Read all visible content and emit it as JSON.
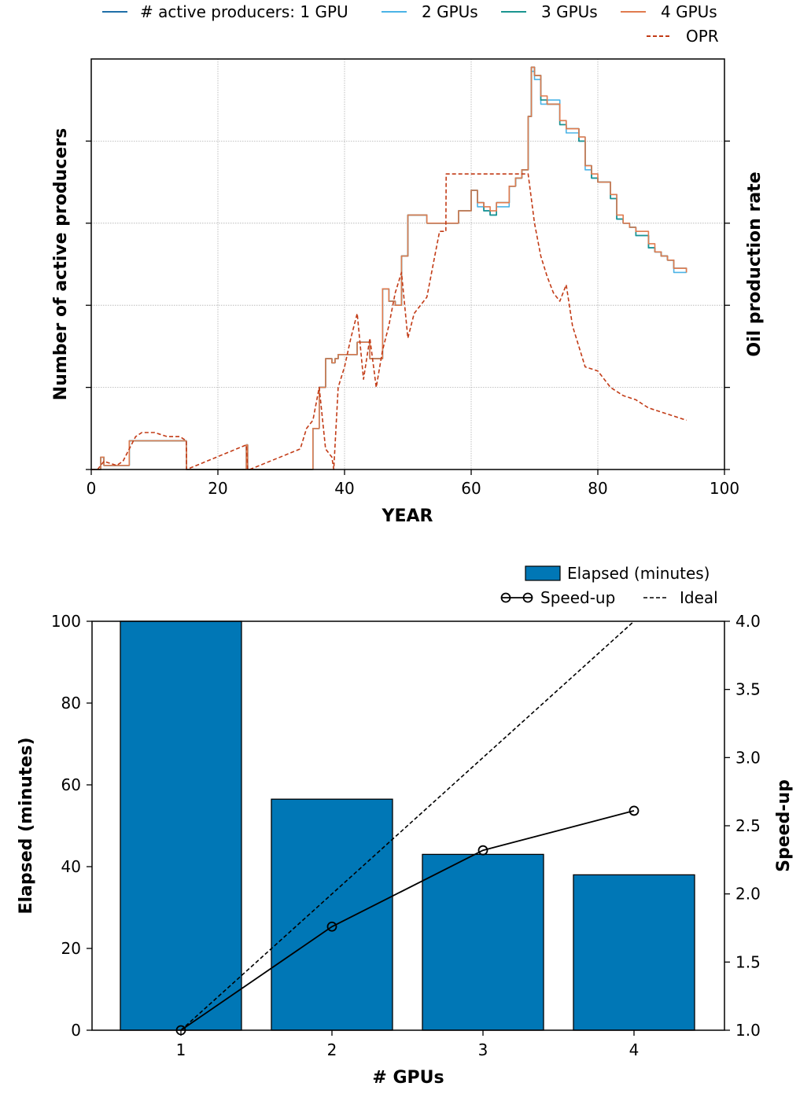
{
  "chart_data": [
    {
      "type": "line",
      "xlabel": "YEAR",
      "ylabel": "Number of active producers",
      "y2label": "Oil production rate",
      "xlim": [
        0,
        100
      ],
      "xticks": [
        "0",
        "20",
        "40",
        "60",
        "80",
        "100"
      ],
      "y_tick_labels_shown": false,
      "ylim": [
        0,
        100
      ],
      "grid": true,
      "legend": {
        "placement": "top-right",
        "entries": [
          "# active producers: 1 GPU",
          "2 GPUs",
          "3 GPUs",
          "4 GPUs",
          "OPR"
        ]
      },
      "series": [
        {
          "name": "# active producers: 1 GPU",
          "color": "#1f6fa8",
          "style": "solid",
          "x": [
            0,
            1,
            1.5,
            2,
            5,
            6,
            15,
            15.05,
            24.5,
            24.7,
            25,
            35,
            36,
            37,
            38,
            38.5,
            39,
            40,
            42,
            44,
            46,
            47,
            48,
            49,
            50,
            52,
            53,
            55,
            55.5,
            57,
            58,
            60,
            61,
            62,
            63,
            64,
            66,
            67,
            68,
            69,
            69.5,
            70,
            71,
            72,
            74,
            75,
            77,
            78,
            79,
            80,
            82,
            83,
            84,
            85,
            86,
            88,
            89,
            90,
            91,
            92,
            94
          ],
          "y": [
            0,
            0,
            3,
            1,
            1,
            7,
            5,
            0,
            6,
            0,
            0,
            10,
            20,
            27,
            26,
            27,
            28,
            28,
            31,
            27,
            44,
            41,
            40,
            52,
            62,
            62,
            60,
            60,
            60,
            60,
            63,
            68,
            65,
            63,
            62,
            65,
            69,
            71,
            73,
            86,
            98,
            96,
            90,
            89,
            84,
            83,
            80,
            74,
            71,
            70,
            66,
            61,
            60,
            59,
            57,
            54,
            53,
            52,
            51,
            49,
            48
          ]
        },
        {
          "name": "2 GPUs",
          "color": "#4bb3e6",
          "style": "solid",
          "x": [
            0,
            1,
            1.5,
            2,
            5,
            6,
            15,
            15.05,
            24.5,
            24.7,
            25,
            35,
            36,
            37,
            38,
            38.5,
            39,
            40,
            42,
            44,
            46,
            47,
            48,
            49,
            50,
            52,
            53,
            55,
            55.5,
            57,
            58,
            60,
            61,
            62,
            63,
            64,
            66,
            67,
            68,
            69,
            69.5,
            70,
            71,
            72,
            74,
            75,
            77,
            78,
            79,
            80,
            82,
            83,
            84,
            85,
            86,
            88,
            89,
            90,
            91,
            92,
            94
          ],
          "y": [
            0,
            0,
            3,
            1,
            1,
            7,
            5,
            0,
            6,
            0,
            0,
            10,
            20,
            27,
            26,
            27,
            28,
            28,
            31,
            27,
            44,
            41,
            40,
            52,
            62,
            62,
            60,
            60,
            60,
            60,
            63,
            68,
            64,
            63,
            62,
            64,
            69,
            71,
            73,
            86,
            97,
            95,
            89,
            90,
            85,
            82,
            81,
            73,
            71,
            70,
            67,
            61,
            60,
            59,
            57,
            54,
            53,
            52,
            51,
            48,
            48
          ]
        },
        {
          "name": "3 GPUs",
          "color": "#1a9590",
          "style": "solid",
          "x": [
            0,
            1,
            1.5,
            2,
            5,
            6,
            15,
            15.05,
            24.5,
            24.7,
            25,
            35,
            36,
            37,
            38,
            38.5,
            39,
            40,
            42,
            44,
            46,
            47,
            48,
            49,
            50,
            52,
            53,
            55,
            55.5,
            57,
            58,
            60,
            61,
            62,
            63,
            64,
            66,
            67,
            68,
            69,
            69.5,
            70,
            71,
            72,
            74,
            75,
            77,
            78,
            79,
            80,
            82,
            83,
            84,
            85,
            86,
            88,
            89,
            90,
            91,
            92,
            94
          ],
          "y": [
            0,
            0,
            3,
            1,
            1,
            7,
            5,
            0,
            6,
            0,
            0,
            10,
            20,
            27,
            26,
            27,
            28,
            28,
            31,
            27,
            44,
            41,
            40,
            52,
            62,
            62,
            60,
            60,
            60,
            60,
            63,
            68,
            65,
            63,
            62,
            65,
            69,
            71,
            73,
            86,
            98,
            96,
            90,
            89,
            84,
            83,
            80,
            74,
            71,
            70,
            66,
            61,
            60,
            59,
            57,
            54,
            53,
            52,
            51,
            49,
            48
          ]
        },
        {
          "name": "4 GPUs",
          "color": "#e07b4f",
          "style": "solid",
          "x": [
            0,
            1,
            1.5,
            2,
            5,
            6,
            15,
            15.05,
            24.5,
            24.7,
            25,
            35,
            36,
            37,
            38,
            38.5,
            39,
            40,
            42,
            44,
            46,
            47,
            48,
            49,
            50,
            52,
            53,
            55,
            55.5,
            57,
            58,
            60,
            61,
            62,
            63,
            64,
            66,
            67,
            68,
            69,
            69.5,
            70,
            71,
            72,
            74,
            75,
            77,
            78,
            79,
            80,
            82,
            83,
            84,
            85,
            86,
            88,
            89,
            90,
            91,
            92,
            94
          ],
          "y": [
            0,
            0,
            3,
            1,
            1,
            7,
            5,
            0,
            6,
            0,
            0,
            10,
            20,
            27,
            26,
            27,
            28,
            28,
            31,
            27,
            44,
            41,
            40,
            52,
            62,
            62,
            60,
            60,
            60,
            60,
            63,
            68,
            65,
            64,
            63,
            65,
            69,
            71,
            73,
            86,
            98,
            96,
            91,
            89,
            85,
            83,
            81,
            74,
            72,
            70,
            67,
            62,
            60,
            59,
            58,
            55,
            53,
            52,
            51,
            49,
            48
          ]
        },
        {
          "name": "OPR",
          "color": "#c23b16",
          "style": "dashed",
          "x": [
            0,
            1,
            2,
            4,
            5,
            6,
            7,
            8,
            10,
            12,
            14,
            15,
            15.05,
            24.5,
            24.7,
            25,
            33,
            34,
            35,
            36,
            37,
            38,
            38.3,
            39,
            40,
            41,
            42,
            43,
            44,
            45,
            46,
            47,
            48,
            49,
            50,
            51,
            52,
            53,
            54,
            55,
            56,
            56.05,
            69,
            70,
            71,
            72,
            73,
            74,
            75,
            76,
            78,
            80,
            82,
            84,
            86,
            88,
            90,
            92,
            94
          ],
          "y": [
            0,
            0,
            2,
            1,
            2,
            5,
            8,
            9,
            9,
            8,
            8,
            7,
            0,
            6,
            0,
            0,
            5,
            10,
            12,
            20,
            5,
            3,
            0,
            20,
            25,
            32,
            38,
            22,
            32,
            20,
            29,
            35,
            43,
            48,
            32,
            38,
            40,
            42,
            50,
            58,
            58,
            72,
            72,
            60,
            52,
            47,
            43,
            41,
            45,
            35,
            25,
            24,
            20,
            18,
            17,
            15,
            14,
            13,
            12
          ]
        }
      ]
    },
    {
      "type": "bar",
      "xlabel": "# GPUs",
      "ylabel": "Elapsed (minutes)",
      "y2label": "Speed-up",
      "categories": [
        "1",
        "2",
        "3",
        "4"
      ],
      "ylim": [
        0,
        100
      ],
      "yticks": [
        "0",
        "20",
        "40",
        "60",
        "80",
        "100"
      ],
      "y2lim": [
        1.0,
        4.0
      ],
      "y2ticks": [
        "1.0",
        "1.5",
        "2.0",
        "2.5",
        "3.0",
        "3.5",
        "4.0"
      ],
      "grid": false,
      "legend": {
        "placement": "top-right",
        "entries": [
          "Elapsed (minutes)",
          "Speed-up",
          "Ideal"
        ]
      },
      "series": [
        {
          "name": "Elapsed (minutes)",
          "type": "bar",
          "color": "#0077b6",
          "values": [
            100,
            56.5,
            43,
            38
          ]
        },
        {
          "name": "Speed-up",
          "type": "line",
          "marker": "circle",
          "color": "#000000",
          "values": [
            1.0,
            1.76,
            2.32,
            2.61
          ]
        },
        {
          "name": "Ideal",
          "type": "line",
          "style": "dashed",
          "color": "#000000",
          "values": [
            1,
            2,
            3,
            4
          ]
        }
      ]
    }
  ]
}
